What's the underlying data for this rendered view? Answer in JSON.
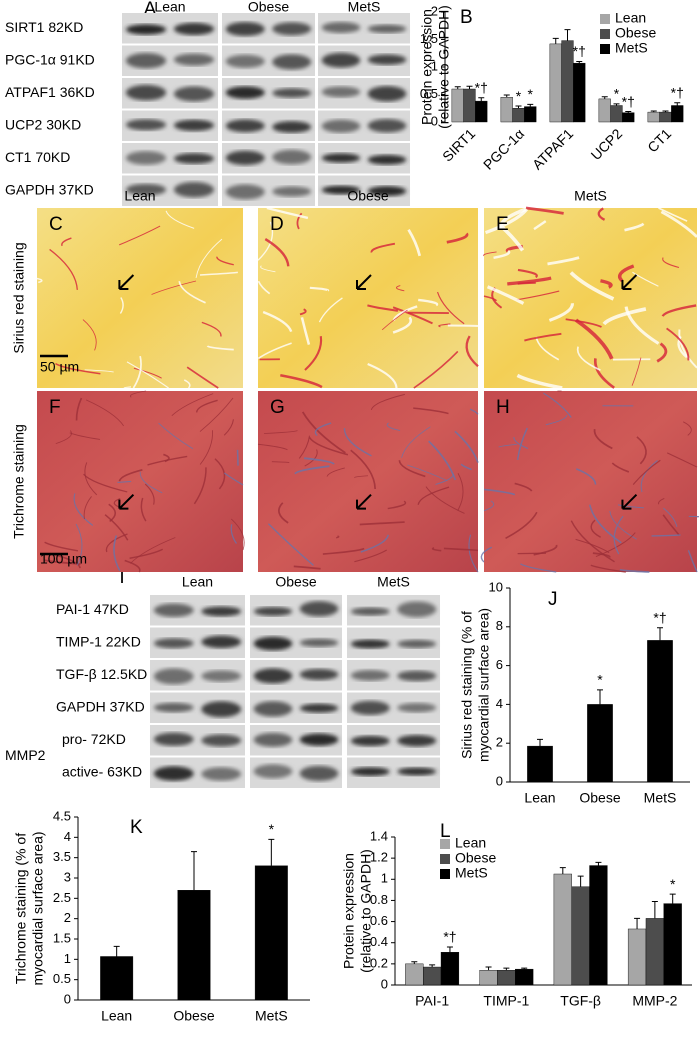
{
  "chart_data": [
    {
      "type": "bar",
      "panel": "B",
      "y_label": [
        "Protein expression",
        "(relative to GAPDH)"
      ],
      "categories": [
        "SIRT1",
        "PGC-1α",
        "ATPAF1",
        "UCP2",
        "CT1"
      ],
      "series": [
        {
          "name": "Lean",
          "color": "#a6a6a6",
          "values": [
            0.6,
            0.45,
            1.42,
            0.42,
            0.18
          ],
          "errors": [
            0.04,
            0.04,
            0.1,
            0.04,
            0.02
          ],
          "significance": [
            null,
            null,
            null,
            null,
            null
          ]
        },
        {
          "name": "Obese",
          "color": "#4d4d4d",
          "values": [
            0.6,
            0.25,
            1.48,
            0.3,
            0.18
          ],
          "errors": [
            0.05,
            0.04,
            0.2,
            0.03,
            0.02
          ],
          "significance": [
            null,
            "*",
            null,
            "*",
            null
          ]
        },
        {
          "name": "MetS",
          "color": "#000000",
          "values": [
            0.38,
            0.28,
            1.07,
            0.17,
            0.3
          ],
          "errors": [
            0.06,
            0.04,
            0.03,
            0.02,
            0.05
          ],
          "significance": [
            "*†",
            "*",
            "*†",
            "*†",
            "*†"
          ]
        }
      ],
      "ylim": [
        0,
        2
      ],
      "yticks": [
        0,
        0.5,
        1,
        1.5,
        2
      ],
      "legend": "upper right"
    },
    {
      "type": "bar",
      "panel": "J",
      "y_label": [
        "Sirius red staining  (% of",
        "myocardial surface area)"
      ],
      "categories": [
        "Lean",
        "Obese",
        "MetS"
      ],
      "values": [
        1.85,
        4.0,
        7.3
      ],
      "errors": [
        0.35,
        0.75,
        0.65
      ],
      "significance": [
        null,
        "*",
        "*†"
      ],
      "color": "#000000",
      "ylim": [
        0,
        10
      ],
      "yticks": [
        0,
        2,
        4,
        6,
        8,
        10
      ]
    },
    {
      "type": "bar",
      "panel": "K",
      "y_label": [
        "Trichrome staining  (% of",
        "myocardial surface area)"
      ],
      "categories": [
        "Lean",
        "Obese",
        "MetS"
      ],
      "values": [
        1.07,
        2.7,
        3.3
      ],
      "errors": [
        0.25,
        0.95,
        0.65
      ],
      "significance": [
        null,
        null,
        "*"
      ],
      "color": "#000000",
      "ylim": [
        0,
        4.5
      ],
      "yticks": [
        0,
        0.5,
        1,
        1.5,
        2,
        2.5,
        3,
        3.5,
        4,
        4.5
      ]
    },
    {
      "type": "bar",
      "panel": "L",
      "y_label": [
        "Protein expression",
        "(relative to GAPDH)"
      ],
      "categories": [
        "PAI-1",
        "TIMP-1",
        "TGF-β",
        "MMP-2"
      ],
      "series": [
        {
          "name": "Lean",
          "color": "#a6a6a6",
          "values": [
            0.2,
            0.14,
            1.05,
            0.53
          ],
          "errors": [
            0.02,
            0.03,
            0.06,
            0.1
          ],
          "significance": [
            null,
            null,
            null,
            null
          ]
        },
        {
          "name": "Obese",
          "color": "#4d4d4d",
          "values": [
            0.17,
            0.14,
            0.93,
            0.63
          ],
          "errors": [
            0.02,
            0.02,
            0.1,
            0.16
          ],
          "significance": [
            null,
            null,
            null,
            null
          ]
        },
        {
          "name": "MetS",
          "color": "#000000",
          "values": [
            0.31,
            0.15,
            1.13,
            0.77
          ],
          "errors": [
            0.05,
            0.01,
            0.03,
            0.09
          ],
          "significance": [
            "*†",
            null,
            null,
            "*"
          ]
        }
      ],
      "ylim": [
        0,
        1.4
      ],
      "yticks": [
        0,
        0.2,
        0.4,
        0.6,
        0.8,
        1,
        1.2,
        1.4
      ],
      "legend": "upper left"
    }
  ],
  "blots": [
    {
      "panel": "A",
      "groups": [
        "Lean",
        "Obese",
        "MetS"
      ],
      "rows": [
        "SIRT1 82KD",
        "PGC-1α 91KD",
        "ATPAF1 36KD",
        "UCP2 30KD",
        "CT1 70KD",
        "GAPDH 37KD"
      ]
    },
    {
      "panel": "I",
      "groups": [
        "Lean",
        "Obese",
        "MetS"
      ],
      "rows": [
        "PAI-1 47KD",
        "TIMP-1 22KD",
        "TGF-β 12.5KD",
        "GAPDH 37KD",
        "pro- 72KD",
        "active- 63KD"
      ],
      "side_label": "MMP2"
    }
  ],
  "histology": {
    "columns": [
      "Lean",
      "Obese",
      "MetS"
    ],
    "rows": [
      {
        "label": "Sirius red staining",
        "panels": [
          "C",
          "D",
          "E"
        ],
        "scale_bar": "50 µm"
      },
      {
        "label": "Trichrome staining",
        "panels": [
          "F",
          "G",
          "H"
        ],
        "scale_bar": "100 µm"
      }
    ]
  }
}
